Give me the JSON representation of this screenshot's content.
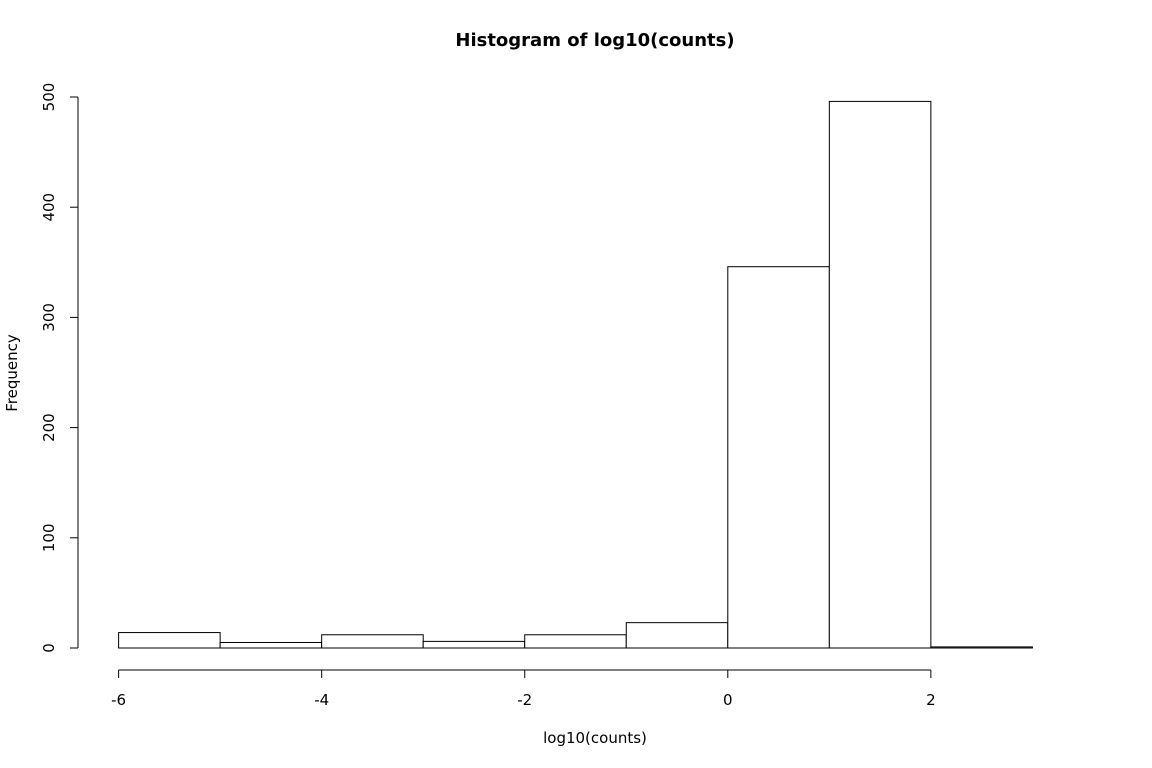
{
  "chart_data": {
    "type": "bar",
    "title": "Histogram of log10(counts)",
    "xlabel": "log10(counts)",
    "ylabel": "Frequency",
    "bins": [
      {
        "start": -6,
        "end": -5,
        "count": 14
      },
      {
        "start": -5,
        "end": -4,
        "count": 5
      },
      {
        "start": -4,
        "end": -3,
        "count": 12
      },
      {
        "start": -3,
        "end": -2,
        "count": 6
      },
      {
        "start": -2,
        "end": -1,
        "count": 12
      },
      {
        "start": -1,
        "end": 0,
        "count": 23
      },
      {
        "start": 0,
        "end": 1,
        "count": 346
      },
      {
        "start": 1,
        "end": 2,
        "count": 496
      },
      {
        "start": 2,
        "end": 3,
        "count": 1
      }
    ],
    "xlim": [
      -6.4,
      3.4
    ],
    "ylim": [
      0,
      500
    ],
    "x_axis_range": [
      -6,
      2
    ],
    "x_ticks": [
      -6,
      -4,
      -2,
      0,
      2
    ],
    "y_ticks": [
      0,
      100,
      200,
      300,
      400,
      500
    ],
    "grid": false,
    "colors": {
      "bar_fill": "#ffffff",
      "bar_stroke": "#000000",
      "axis": "#000000",
      "background": "#ffffff"
    }
  }
}
